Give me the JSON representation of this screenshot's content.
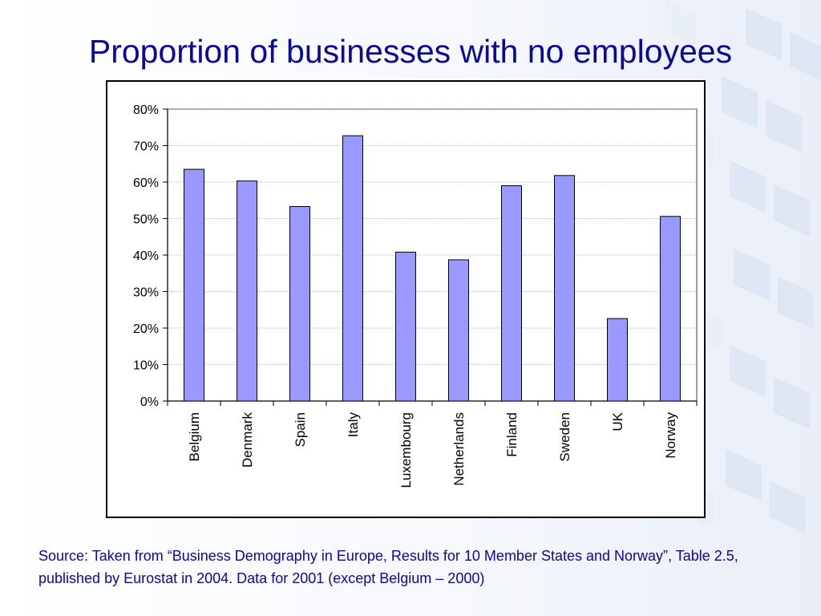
{
  "slide": {
    "title": "Proportion of businesses with no employees",
    "source": "Source: Taken from “Business Demography in Europe, Results for 10 Member States and Norway”, Table 2.5, published by Eurostat in 2004. Data for 2001 (except Belgium – 2000)"
  },
  "colors": {
    "title": "#0a0a96",
    "bar_fill": "#9999ff",
    "bar_stroke": "#000000",
    "gridline": "#bdbdbd",
    "plot_border": "#808080"
  },
  "chart_data": {
    "type": "bar",
    "title": "",
    "xlabel": "",
    "ylabel": "",
    "categories": [
      "Belgium",
      "Denmark",
      "Spain",
      "Italy",
      "Luxembourg",
      "Netherlands",
      "Finland",
      "Sweden",
      "UK",
      "Norway"
    ],
    "values": [
      63.5,
      60.3,
      53.3,
      72.7,
      40.8,
      38.7,
      59.0,
      61.8,
      22.6,
      50.6
    ],
    "ylim": [
      0,
      80
    ],
    "yticks": [
      0,
      10,
      20,
      30,
      40,
      50,
      60,
      70,
      80
    ],
    "ytick_labels": [
      "0%",
      "10%",
      "20%",
      "30%",
      "40%",
      "50%",
      "60%",
      "70%",
      "80%"
    ],
    "grid": true,
    "legend": "none"
  }
}
